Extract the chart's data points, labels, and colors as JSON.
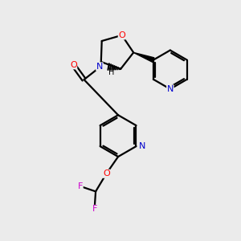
{
  "background_color": "#ebebeb",
  "bond_color": "#000000",
  "atom_colors": {
    "O": "#ff0000",
    "N": "#0000cc",
    "F": "#cc00cc",
    "C": "#000000",
    "H": "#555555"
  },
  "figsize": [
    3.0,
    3.0
  ],
  "dpi": 100
}
